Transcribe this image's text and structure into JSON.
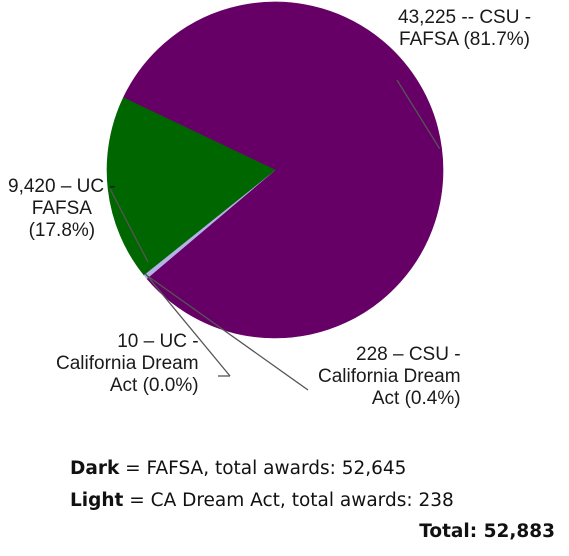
{
  "chart_data": {
    "type": "pie",
    "categories": [
      "CSU - FAFSA",
      "UC - FAFSA",
      "UC - California Dream Act",
      "CSU - California Dream Act"
    ],
    "values": [
      43225,
      9420,
      10,
      228
    ],
    "percent_labels": [
      "81.7%",
      "17.8%",
      "0.0%",
      "0.4%"
    ],
    "colors": [
      "#660066",
      "#006600",
      "#9999cc",
      "#b3b3e6"
    ],
    "slice_labels": [
      "43,225 -- CSU -\nFAFSA (81.7%)",
      "9,420 – UC -\nFAFSA\n(17.8%)",
      "10 – UC -\nCalifornia Dream\nAct (0.0%)",
      "228 – CSU -\nCalifornia Dream\nAct (0.4%)"
    ],
    "legend": [
      {
        "bold": "Dark",
        "text": " = FAFSA, total awards: 52,645"
      },
      {
        "bold": "Light",
        "text": " = CA Dream Act, total awards: 238"
      }
    ],
    "total": "Total: 52,883"
  }
}
